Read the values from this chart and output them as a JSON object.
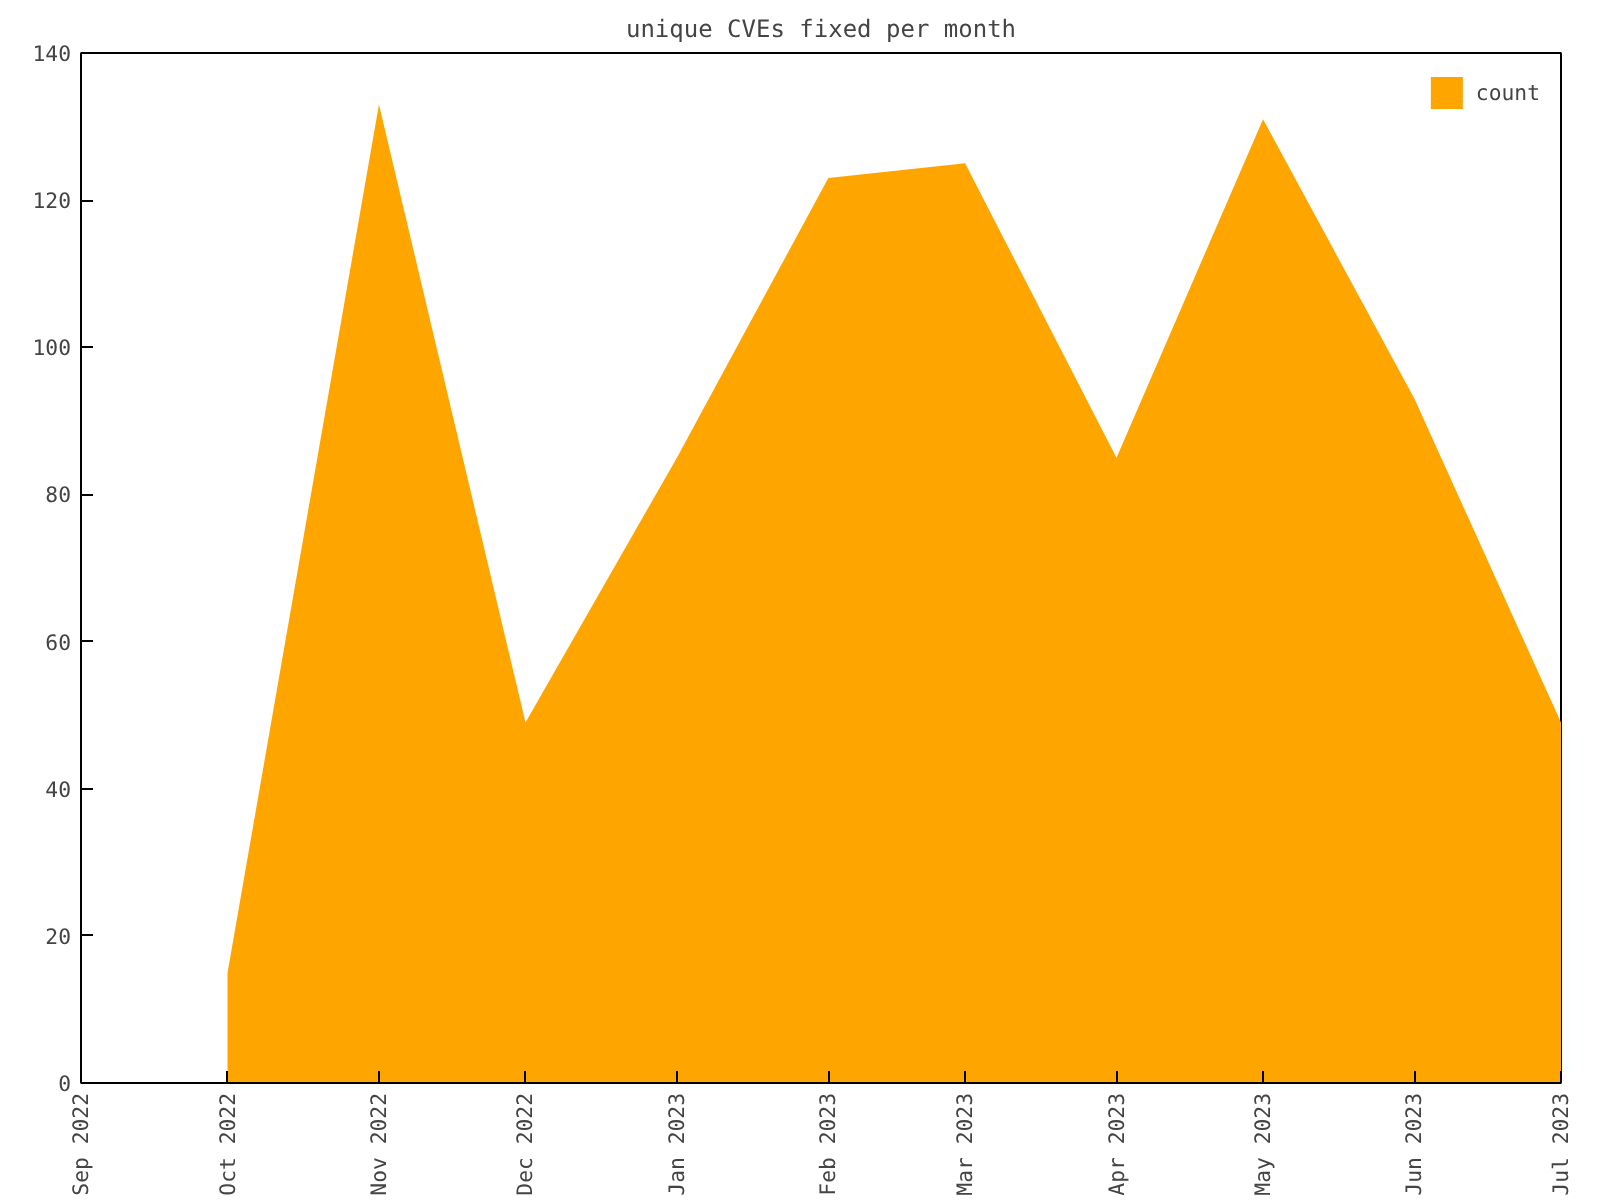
{
  "chart_data": {
    "type": "area",
    "title": "unique CVEs fixed per month",
    "x": [
      "2022-10",
      "2022-11",
      "2022-12",
      "2023-01",
      "2023-02",
      "2023-03",
      "2023-04",
      "2023-05",
      "2023-06",
      "2023-07"
    ],
    "series": [
      {
        "name": "count",
        "color": "#ffa500",
        "values": [
          15,
          133,
          49,
          85,
          123,
          125,
          85,
          131,
          93,
          49
        ]
      }
    ],
    "xlim": [
      "2022-09",
      "2023-07"
    ],
    "xticks": [
      {
        "value": "2022-09",
        "label": "Sep 2022"
      },
      {
        "value": "2022-10",
        "label": "Oct 2022"
      },
      {
        "value": "2022-11",
        "label": "Nov 2022"
      },
      {
        "value": "2022-12",
        "label": "Dec 2022"
      },
      {
        "value": "2023-01",
        "label": "Jan 2023"
      },
      {
        "value": "2023-02",
        "label": "Feb 2023"
      },
      {
        "value": "2023-03",
        "label": "Mar 2023"
      },
      {
        "value": "2023-04",
        "label": "Apr 2023"
      },
      {
        "value": "2023-05",
        "label": "May 2023"
      },
      {
        "value": "2023-06",
        "label": "Jun 2023"
      },
      {
        "value": "2023-07",
        "label": "Jul 2023"
      }
    ],
    "ylim": [
      0,
      140
    ],
    "yticks": [
      0,
      20,
      40,
      60,
      80,
      100,
      120,
      140
    ],
    "grid": false,
    "legend": "top right"
  }
}
